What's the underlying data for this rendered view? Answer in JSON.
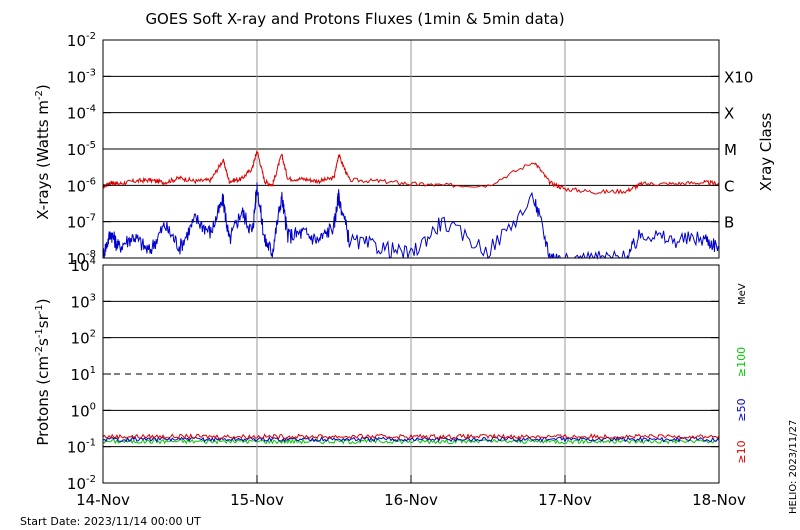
{
  "title": "GOES Soft X-ray and Protons Fluxes   (1min & 5min data)",
  "footer": {
    "start_date": "Start Date: 2023/11/14 00:00 UT",
    "credit": "HELIO: 2023/11/27"
  },
  "colors": {
    "xray_long": "#dd0000",
    "xray_short": "#0000cc",
    "proton_10": "#dd0000",
    "proton_50": "#0000cc",
    "proton_100": "#00cc00",
    "grid": "#000000",
    "day_lines": "#999999"
  },
  "chart_data": [
    {
      "type": "line",
      "name": "xray",
      "ylabel": "X-rays (Watts m",
      "ylabel_sup": "-2",
      "ylabel_close": ")",
      "yscale": "log",
      "ylim": [
        1e-08,
        0.01
      ],
      "ytick_labels": [
        {
          "base": "10",
          "exp": "-8"
        },
        {
          "base": "10",
          "exp": "-7"
        },
        {
          "base": "10",
          "exp": "-6"
        },
        {
          "base": "10",
          "exp": "-5"
        },
        {
          "base": "10",
          "exp": "-4"
        },
        {
          "base": "10",
          "exp": "-3"
        },
        {
          "base": "10",
          "exp": "-2"
        }
      ],
      "right_axis_label": "Xray Class",
      "class_labels": [
        "B",
        "C",
        "M",
        "X",
        "X10"
      ],
      "x_ticks": [
        "14-Nov",
        "15-Nov",
        "16-Nov",
        "17-Nov",
        "18-Nov"
      ],
      "xlim_days": [
        0,
        4
      ],
      "series": [
        {
          "key": "long",
          "x": [
            0,
            0.05,
            0.1,
            0.2,
            0.3,
            0.4,
            0.5,
            0.6,
            0.7,
            0.78,
            0.82,
            0.9,
            0.97,
            1.0,
            1.05,
            1.1,
            1.16,
            1.2,
            1.3,
            1.4,
            1.5,
            1.53,
            1.6,
            1.8,
            2.0,
            2.2,
            2.5,
            2.8,
            2.9,
            3.0,
            3.2,
            3.4,
            3.5,
            3.7,
            3.9,
            4.0
          ],
          "y": [
            9e-07,
            1.2e-06,
            1.1e-06,
            1.3e-06,
            1.4e-06,
            1.2e-06,
            1.6e-06,
            1.3e-06,
            1.4e-06,
            5e-06,
            1.3e-06,
            1.5e-06,
            3e-06,
            9e-06,
            1.3e-06,
            1e-06,
            7e-06,
            1.5e-06,
            1.5e-06,
            1.3e-06,
            1.6e-06,
            7e-06,
            1.4e-06,
            1.3e-06,
            1.1e-06,
            1e-06,
            1e-06,
            4.5e-06,
            1.2e-06,
            8e-07,
            6.5e-07,
            7e-07,
            1.1e-06,
            1.1e-06,
            1.2e-06,
            1.1e-06
          ]
        },
        {
          "key": "short",
          "x": [
            0,
            0.05,
            0.1,
            0.2,
            0.3,
            0.4,
            0.5,
            0.6,
            0.7,
            0.78,
            0.82,
            0.9,
            0.97,
            1.0,
            1.05,
            1.1,
            1.16,
            1.2,
            1.3,
            1.4,
            1.5,
            1.53,
            1.6,
            1.8,
            2.0,
            2.2,
            2.5,
            2.8,
            2.9,
            3.0,
            3.2,
            3.4,
            3.5,
            3.7,
            3.9,
            4.0
          ],
          "y": [
            1.2e-08,
            5e-08,
            2e-08,
            4e-08,
            1.5e-08,
            8e-08,
            2e-08,
            1.2e-07,
            5e-08,
            4e-07,
            3e-08,
            2e-07,
            5e-08,
            1e-06,
            3e-08,
            1.5e-08,
            5e-07,
            4e-08,
            5e-08,
            3e-08,
            8e-08,
            5e-07,
            3e-08,
            2e-08,
            1.2e-08,
            1e-07,
            1.5e-08,
            4.5e-07,
            1.2e-08,
            8e-09,
            1e-08,
            1e-08,
            5e-08,
            3e-08,
            3.5e-08,
            2e-08
          ]
        }
      ]
    },
    {
      "type": "line",
      "name": "protons",
      "ylabel": "Protons (cm",
      "ylabel_sup1": "-2",
      "ylabel_mid1": "s",
      "ylabel_sup2": "-1",
      "ylabel_mid2": "sr",
      "ylabel_sup3": "-1",
      "ylabel_close": ")",
      "yscale": "log",
      "ylim": [
        0.01,
        10000
      ],
      "ytick_labels": [
        {
          "base": "10",
          "exp": "-2"
        },
        {
          "base": "10",
          "exp": "-1"
        },
        {
          "base": "10",
          "exp": "0"
        },
        {
          "base": "10",
          "exp": "1"
        },
        {
          "base": "10",
          "exp": "2"
        },
        {
          "base": "10",
          "exp": "3"
        },
        {
          "base": "10",
          "exp": "4"
        }
      ],
      "threshold": 10,
      "unit_label": "MeV",
      "legend": [
        {
          "label": "≥100",
          "key": "proton_100"
        },
        {
          "label": "≥50",
          "key": "proton_50"
        },
        {
          "label": "≥10",
          "key": "proton_10"
        }
      ],
      "x_ticks": [
        "14-Nov",
        "15-Nov",
        "16-Nov",
        "17-Nov",
        "18-Nov"
      ],
      "xlim_days": [
        0,
        4
      ],
      "series_level": {
        "proton_10": 0.19,
        "proton_50": 0.16,
        "proton_100": 0.14
      }
    }
  ]
}
